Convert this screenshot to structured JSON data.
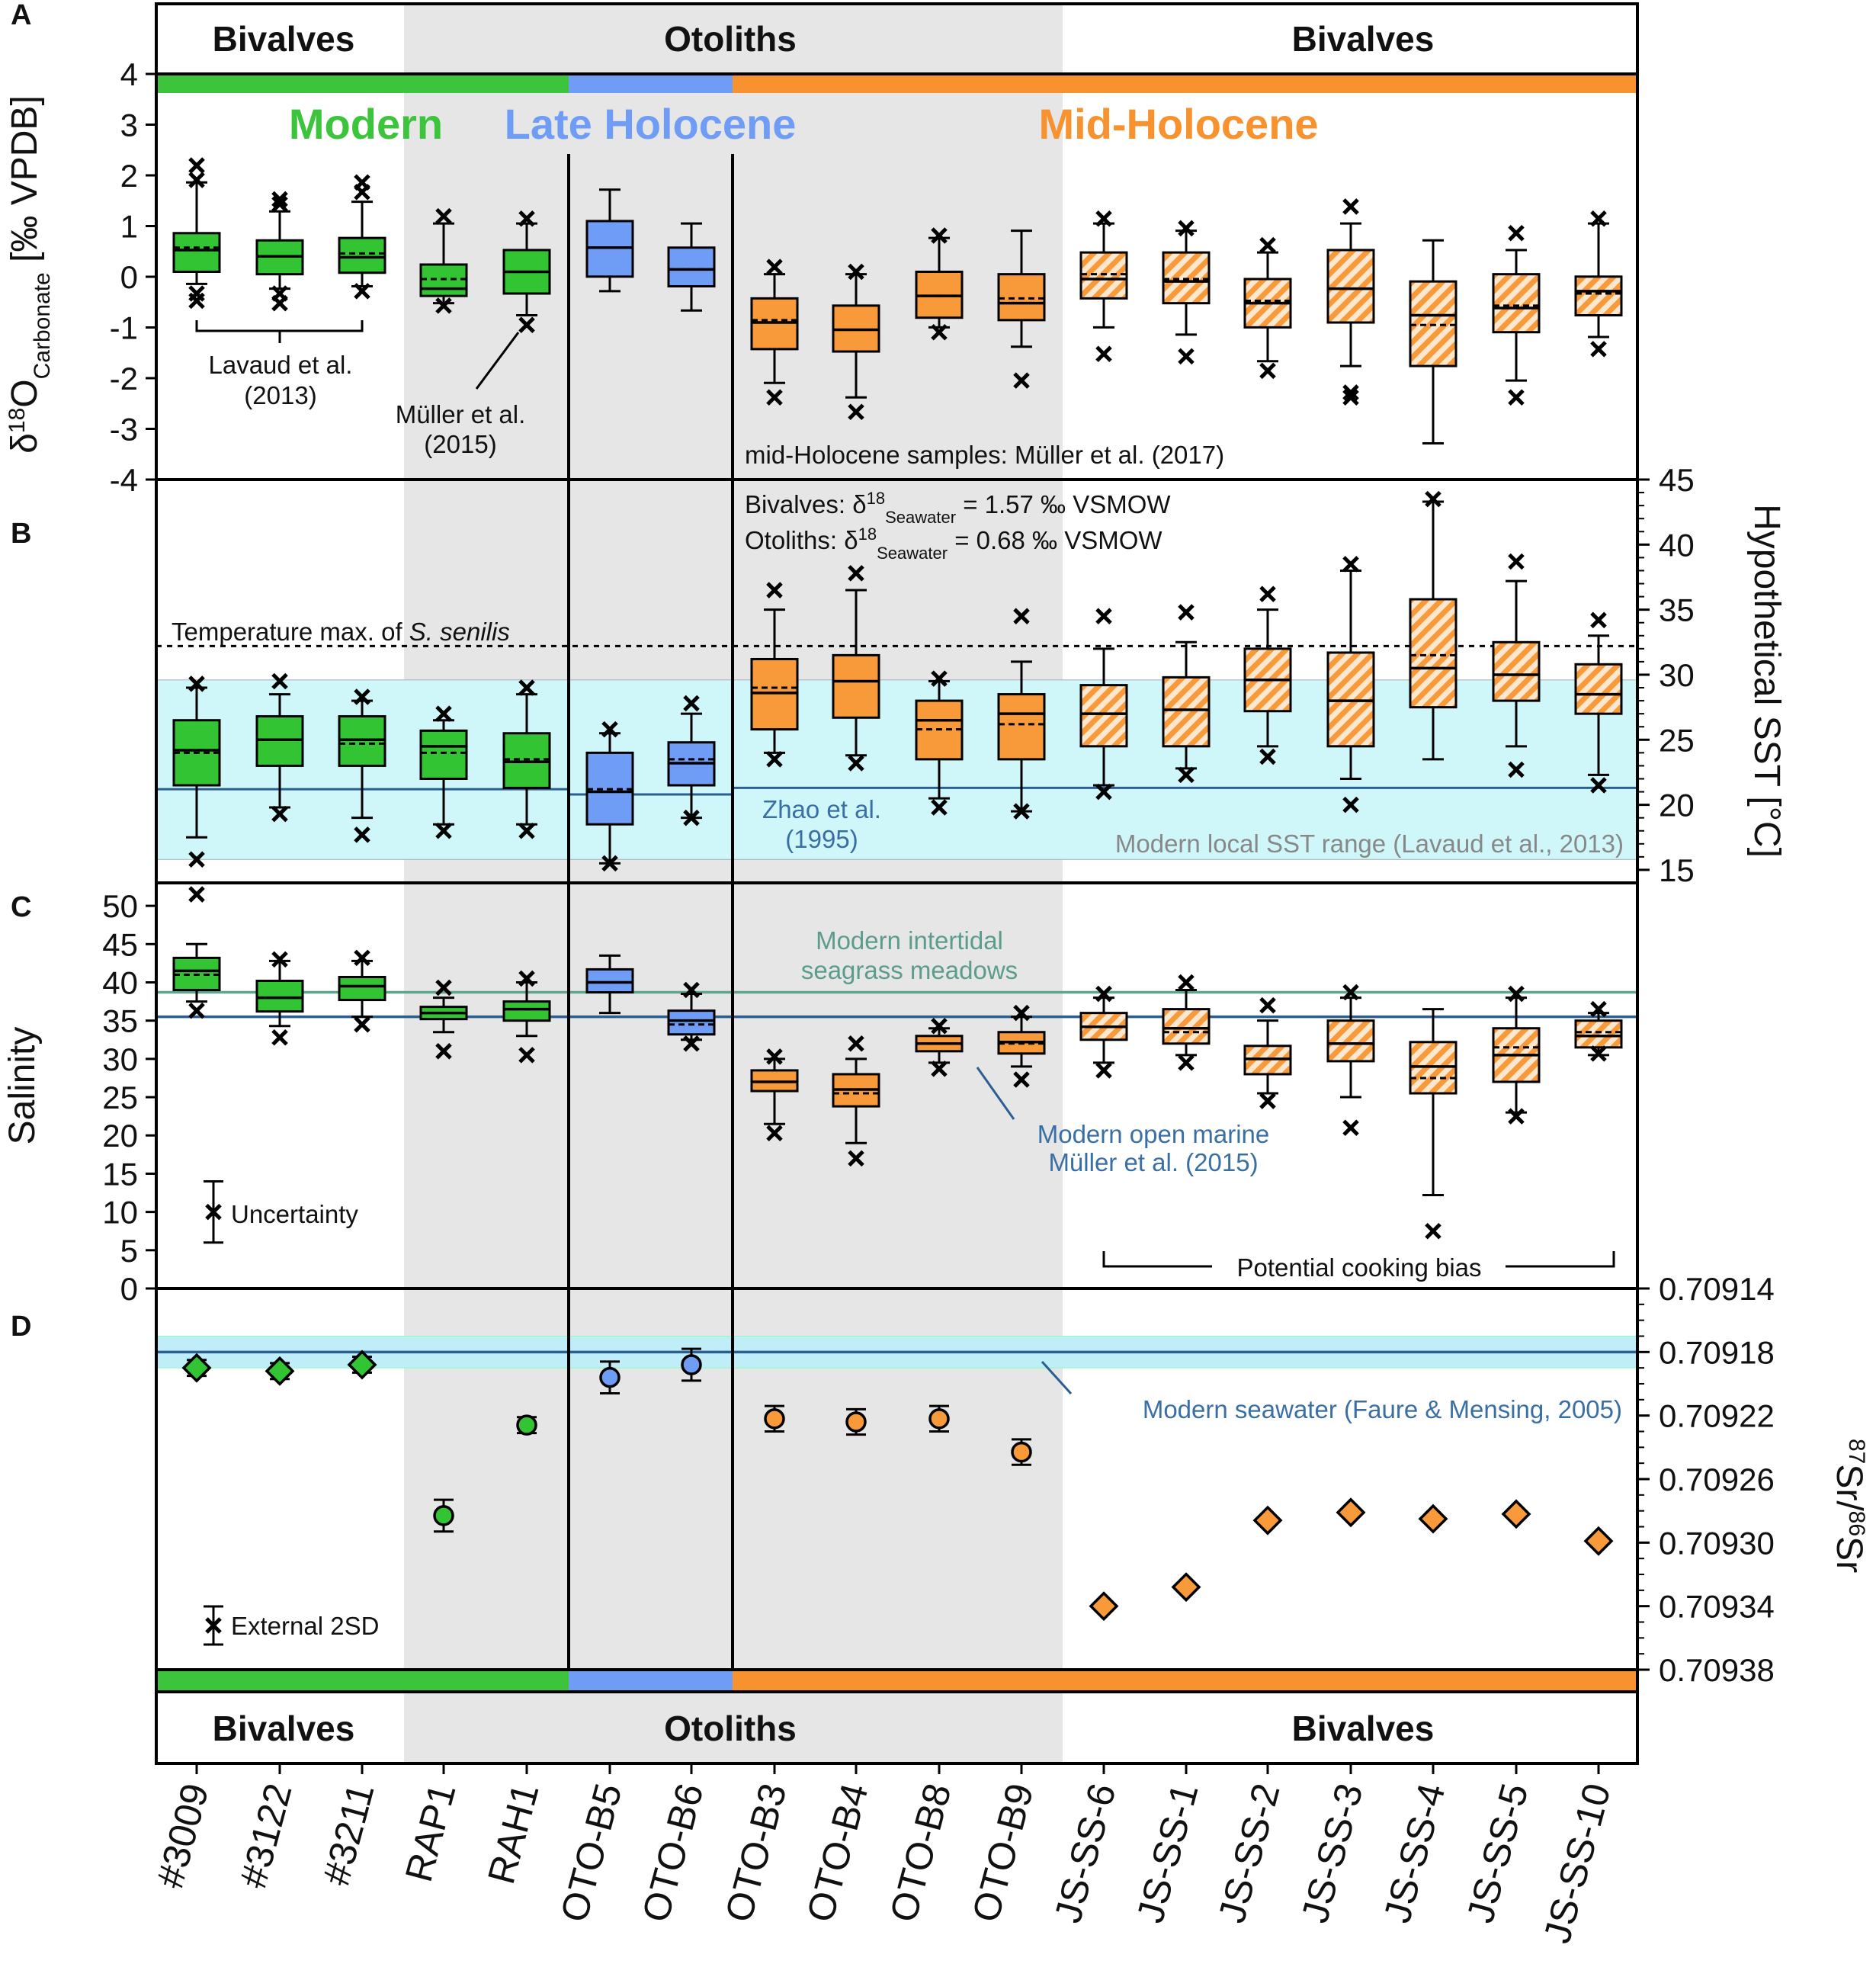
{
  "figure": {
    "panel_labels": [
      "A",
      "B",
      "C",
      "D"
    ],
    "top_groups": [
      {
        "label": "Bivalves",
        "from": 0,
        "to": 2
      },
      {
        "label": "Otoliths",
        "from": 3,
        "to": 10
      },
      {
        "label": "Bivalves",
        "from": 11,
        "to": 17
      }
    ],
    "periods": [
      {
        "label": "Modern",
        "color": "#3cc43c",
        "from": 0,
        "to": 4
      },
      {
        "label": "Late Holocene",
        "color": "#6f9cf4",
        "from": 5,
        "to": 6
      },
      {
        "label": "Mid-Holocene",
        "color": "#f7922e",
        "from": 7,
        "to": 17
      }
    ],
    "colors": {
      "modern": "#33c433",
      "late": "#6f9cf4",
      "mid": "#f99a3a",
      "gray_band": "#e6e6e6",
      "cyan_band": "#cff7fa",
      "blue_line": "#2b5f91",
      "green_line": "#5fa58f",
      "ann_blue": "#3a6fa6",
      "ann_teal": "#5c9c8c",
      "ann_gray": "#888888"
    },
    "samples": [
      "#3009",
      "#3122",
      "#3211",
      "RAP1",
      "RAH1",
      "OTO-B5",
      "OTO-B6",
      "OTO-B3",
      "OTO-B4",
      "OTO-B8",
      "OTO-B9",
      "JS-SS-6",
      "JS-SS-1",
      "JS-SS-2",
      "JS-SS-3",
      "JS-SS-4",
      "JS-SS-5",
      "JS-SS-10"
    ],
    "annotations_A": {
      "lavaud_1": "Lavaud et al.",
      "lavaud_2": "(2013)",
      "muller_1": "Müller et al.",
      "muller_2": "(2015)",
      "midholo": "mid-Holocene samples: Müller et al. (2017)"
    },
    "annotations_B": {
      "bivalves_prefix": "Bivalves: δ",
      "bivalves_suffix": " = 1.57 ‰ VSMOW",
      "otoliths_prefix": "Otoliths:  δ",
      "otoliths_suffix": " = 0.68 ‰ VSMOW",
      "sup": "18",
      "sub": "Seawater",
      "tempmax_prefix": "Temperature max. of ",
      "tempmax_species": "S. senilis",
      "zhao_1": "Zhao et al.",
      "zhao_2": "(1995)",
      "sst_range": "Modern local SST range (Lavaud et al., 2013)"
    },
    "annotations_C": {
      "seagrass_1": "Modern intertidal",
      "seagrass_2": "seagrass meadows",
      "openmarine_1": "Modern open marine",
      "openmarine_2": "Müller et al. (2015)",
      "uncertainty": "Uncertainty",
      "cooking": "Potential cooking bias"
    },
    "annotations_D": {
      "seawater": "Modern seawater (Faure & Mensing, 2005)",
      "ext2sd": "External 2SD"
    },
    "axis_labels": {
      "a_delta": "δ",
      "a_sup": "18",
      "a_o": "O",
      "a_sub": "Carbonate",
      "a_unit": " [‰ VPDB]",
      "b": "Hypothetical SST [°C]",
      "c": "Salinity",
      "d_sup1": "87",
      "d_sr1": "Sr/",
      "d_sup2": "86",
      "d_sr2": "Sr"
    }
  },
  "chart_data": [
    {
      "panel": "A",
      "type": "box",
      "ylabel": "δ18O Carbonate [‰ VPDB]",
      "ylim": [
        -4,
        4
      ],
      "yticks": [
        4,
        3,
        2,
        1,
        0,
        -1,
        -2,
        -3,
        -4
      ],
      "ytick_labels": [
        "4",
        "3",
        "2",
        "1",
        "0",
        "-1",
        "-2",
        "-3",
        "-4"
      ],
      "boxes": [
        {
          "q1": 0.3,
          "med": 0.75,
          "q3": 1.1,
          "mean": 0.8,
          "wlo": 0.05,
          "whi": 2.15,
          "out": [
            -0.15,
            -0.3,
            2.2,
            2.5
          ]
        },
        {
          "q1": 0.25,
          "med": 0.62,
          "q3": 0.95,
          "mean": 0.62,
          "wlo": -0.05,
          "whi": 1.55,
          "out": [
            -0.15,
            -0.35,
            1.7,
            1.8
          ]
        },
        {
          "q1": 0.28,
          "med": 0.6,
          "q3": 1.0,
          "mean": 0.68,
          "wlo": 0.0,
          "whi": 1.75,
          "out": [
            -0.1,
            1.95,
            2.15
          ]
        },
        {
          "q1": -0.2,
          "med": -0.05,
          "q3": 0.45,
          "mean": 0.15,
          "wlo": -0.35,
          "whi": 1.3,
          "out": [
            -0.4,
            1.45
          ]
        },
        {
          "q1": -0.15,
          "med": 0.3,
          "q3": 0.75,
          "mean": 0.3,
          "wlo": -0.6,
          "whi": 1.3,
          "out": [
            -0.8,
            1.4
          ]
        },
        {
          "q1": 0.2,
          "med": 0.8,
          "q3": 1.35,
          "mean": 0.8,
          "wlo": -0.1,
          "whi": 2.0,
          "out": []
        },
        {
          "q1": 0.0,
          "med": 0.35,
          "q3": 0.8,
          "mean": 0.35,
          "wlo": -0.5,
          "whi": 1.3,
          "out": []
        },
        {
          "q1": -1.3,
          "med": -0.75,
          "q3": -0.25,
          "mean": -0.7,
          "wlo": -2.0,
          "whi": 0.25,
          "out": [
            -2.3,
            0.4
          ]
        },
        {
          "q1": -1.35,
          "med": -0.9,
          "q3": -0.4,
          "mean": -0.9,
          "wlo": -2.3,
          "whi": 0.25,
          "out": [
            -2.6,
            0.3
          ]
        },
        {
          "q1": -0.65,
          "med": -0.2,
          "q3": 0.3,
          "mean": -0.2,
          "wlo": -0.85,
          "whi": 1.0,
          "out": [
            -0.95,
            1.05
          ]
        },
        {
          "q1": -0.7,
          "med": -0.35,
          "q3": 0.25,
          "mean": -0.25,
          "wlo": -1.25,
          "whi": 1.15,
          "out": [
            -1.95
          ]
        },
        {
          "q1": -0.25,
          "med": 0.15,
          "q3": 0.7,
          "mean": 0.25,
          "wlo": -0.85,
          "whi": 1.3,
          "out": [
            -1.4,
            1.4
          ]
        },
        {
          "q1": -0.35,
          "med": 0.1,
          "q3": 0.7,
          "mean": 0.15,
          "wlo": -1.0,
          "whi": 1.15,
          "out": [
            -1.45,
            1.2
          ]
        },
        {
          "q1": -0.85,
          "med": -0.35,
          "q3": 0.15,
          "mean": -0.3,
          "wlo": -1.55,
          "whi": 0.7,
          "out": [
            -1.75,
            0.85
          ]
        },
        {
          "q1": -0.75,
          "med": -0.05,
          "q3": 0.75,
          "mean": -0.05,
          "wlo": -1.65,
          "whi": 1.3,
          "out": [
            -2.2,
            -2.3,
            1.65
          ]
        },
        {
          "q1": -1.65,
          "med": -0.6,
          "q3": 0.1,
          "mean": -0.8,
          "wlo": -3.25,
          "whi": 0.95,
          "out": []
        },
        {
          "q1": -0.95,
          "med": -0.45,
          "q3": 0.25,
          "mean": -0.4,
          "wlo": -1.95,
          "whi": 0.75,
          "out": [
            -2.3,
            1.1
          ]
        },
        {
          "q1": -0.6,
          "med": -0.1,
          "q3": 0.2,
          "mean": -0.15,
          "wlo": -1.05,
          "whi": 1.3,
          "out": [
            -1.3,
            1.4
          ]
        }
      ]
    },
    {
      "panel": "B",
      "type": "box",
      "ylabel": "Hypothetical SST [°C]",
      "ylim": [
        14,
        45
      ],
      "yticks": [
        45,
        40,
        35,
        30,
        25,
        20,
        15
      ],
      "ytick_labels": [
        "45",
        "40",
        "35",
        "30",
        "25",
        "20",
        "15"
      ],
      "ref": {
        "temp_max": 32.2,
        "zhao_modern": 21.2,
        "zhao_late": 20.8,
        "zhao_mid": 21.3,
        "sst_range": [
          15.8,
          29.6
        ]
      },
      "boxes": [
        {
          "q1": 21.5,
          "med": 24.2,
          "q3": 26.5,
          "mean": 24.0,
          "wlo": 17.5,
          "whi": 29.0,
          "out": [
            15.8,
            29.3
          ]
        },
        {
          "q1": 23.0,
          "med": 25.0,
          "q3": 26.8,
          "mean": 25.0,
          "wlo": 19.8,
          "whi": 28.5,
          "out": [
            19.3,
            29.5
          ]
        },
        {
          "q1": 23.0,
          "med": 25.0,
          "q3": 26.8,
          "mean": 24.7,
          "wlo": 19.0,
          "whi": 28.0,
          "out": [
            17.7,
            28.3
          ]
        },
        {
          "q1": 22.0,
          "med": 24.5,
          "q3": 25.7,
          "mean": 24.0,
          "wlo": 18.5,
          "whi": 26.5,
          "out": [
            18.0,
            27.0
          ]
        },
        {
          "q1": 21.3,
          "med": 23.3,
          "q3": 25.5,
          "mean": 23.5,
          "wlo": 18.5,
          "whi": 28.5,
          "out": [
            18.0,
            29.0
          ]
        },
        {
          "q1": 18.5,
          "med": 21.0,
          "q3": 24.0,
          "mean": 21.2,
          "wlo": 15.5,
          "whi": 25.5,
          "out": [
            15.5,
            25.8
          ]
        },
        {
          "q1": 21.5,
          "med": 23.2,
          "q3": 24.8,
          "mean": 23.5,
          "wlo": 19.0,
          "whi": 27.0,
          "out": [
            19.0,
            27.8
          ]
        },
        {
          "q1": 25.8,
          "med": 28.6,
          "q3": 31.2,
          "mean": 29.0,
          "wlo": 24.0,
          "whi": 35.0,
          "out": [
            23.5,
            36.5
          ]
        },
        {
          "q1": 26.7,
          "med": 29.5,
          "q3": 31.5,
          "mean": 29.5,
          "wlo": 23.8,
          "whi": 36.5,
          "out": [
            23.2,
            37.8
          ]
        },
        {
          "q1": 23.5,
          "med": 26.5,
          "q3": 28.0,
          "mean": 25.8,
          "wlo": 20.5,
          "whi": 29.5,
          "out": [
            19.8,
            29.7
          ]
        },
        {
          "q1": 23.5,
          "med": 27.0,
          "q3": 28.5,
          "mean": 26.2,
          "wlo": 19.5,
          "whi": 31.0,
          "out": [
            19.5,
            34.5
          ]
        },
        {
          "q1": 24.5,
          "med": 27.0,
          "q3": 29.2,
          "mean": 27.0,
          "wlo": 21.5,
          "whi": 32.0,
          "out": [
            21.0,
            34.5
          ]
        },
        {
          "q1": 24.5,
          "med": 27.3,
          "q3": 29.8,
          "mean": 27.3,
          "wlo": 22.8,
          "whi": 32.5,
          "out": [
            22.3,
            34.8
          ]
        },
        {
          "q1": 27.2,
          "med": 29.6,
          "q3": 32.0,
          "mean": 29.6,
          "wlo": 24.5,
          "whi": 35.0,
          "out": [
            23.7,
            36.2
          ]
        },
        {
          "q1": 24.5,
          "med": 28.0,
          "q3": 31.7,
          "mean": 28.0,
          "wlo": 22.0,
          "whi": 38.0,
          "out": [
            20.0,
            38.5
          ]
        },
        {
          "q1": 27.5,
          "med": 30.5,
          "q3": 35.8,
          "mean": 31.5,
          "wlo": 23.5,
          "whi": 43.3,
          "out": [
            43.5
          ]
        },
        {
          "q1": 28.0,
          "med": 30.0,
          "q3": 32.5,
          "mean": 30.0,
          "wlo": 24.5,
          "whi": 37.2,
          "out": [
            22.7,
            38.7
          ]
        },
        {
          "q1": 27.0,
          "med": 28.5,
          "q3": 30.8,
          "mean": 28.5,
          "wlo": 22.3,
          "whi": 33.0,
          "out": [
            21.5,
            34.2
          ]
        }
      ]
    },
    {
      "panel": "C",
      "type": "box",
      "ylabel": "Salinity",
      "ylim": [
        0,
        53
      ],
      "yticks": [
        0,
        5,
        10,
        15,
        20,
        25,
        30,
        35,
        40,
        45,
        50
      ],
      "ytick_labels": [
        "0",
        "5",
        "10",
        "15",
        "20",
        "25",
        "30",
        "35",
        "40",
        "45",
        "50"
      ],
      "ref": {
        "seagrass": 38.7,
        "open_marine": 35.5
      },
      "uncertainty": {
        "center": 10,
        "lo": 6,
        "hi": 14
      },
      "boxes": [
        {
          "q1": 39.0,
          "med": 41.5,
          "q3": 43.2,
          "mean": 41.0,
          "wlo": 37.5,
          "whi": 45.0,
          "out": [
            36.3,
            51.5
          ]
        },
        {
          "q1": 36.2,
          "med": 38.0,
          "q3": 40.2,
          "mean": 38.0,
          "wlo": 34.3,
          "whi": 42.8,
          "out": [
            32.8,
            43.0
          ]
        },
        {
          "q1": 37.7,
          "med": 39.5,
          "q3": 40.7,
          "mean": 39.5,
          "wlo": 35.5,
          "whi": 42.8,
          "out": [
            34.5,
            43.2
          ]
        },
        {
          "q1": 35.2,
          "med": 36.0,
          "q3": 36.8,
          "mean": 36.0,
          "wlo": 33.5,
          "whi": 38.0,
          "out": [
            31.0,
            39.3
          ]
        },
        {
          "q1": 35.0,
          "med": 36.5,
          "q3": 37.5,
          "mean": 36.5,
          "wlo": 33.0,
          "whi": 40.0,
          "out": [
            30.5,
            40.5
          ]
        },
        {
          "q1": 38.7,
          "med": 40.0,
          "q3": 41.7,
          "mean": 40.0,
          "wlo": 36.0,
          "whi": 43.5,
          "out": []
        },
        {
          "q1": 33.2,
          "med": 35.0,
          "q3": 36.3,
          "mean": 34.5,
          "wlo": 32.5,
          "whi": 38.5,
          "out": [
            32.0,
            39.0
          ]
        },
        {
          "q1": 25.8,
          "med": 27.0,
          "q3": 28.5,
          "mean": 27.0,
          "wlo": 21.5,
          "whi": 30.0,
          "out": [
            20.3,
            30.3
          ]
        },
        {
          "q1": 23.8,
          "med": 26.0,
          "q3": 28.0,
          "mean": 25.5,
          "wlo": 19.0,
          "whi": 30.0,
          "out": [
            17.0,
            32.0
          ]
        },
        {
          "q1": 31.0,
          "med": 32.0,
          "q3": 33.0,
          "mean": 32.0,
          "wlo": 29.5,
          "whi": 34.0,
          "out": [
            28.7,
            34.3
          ]
        },
        {
          "q1": 30.7,
          "med": 32.2,
          "q3": 33.5,
          "mean": 32.0,
          "wlo": 29.0,
          "whi": 35.5,
          "out": [
            27.3,
            36.0
          ]
        },
        {
          "q1": 32.5,
          "med": 34.2,
          "q3": 36.0,
          "mean": 34.2,
          "wlo": 29.5,
          "whi": 38.0,
          "out": [
            28.5,
            38.5
          ]
        },
        {
          "q1": 32.0,
          "med": 34.0,
          "q3": 36.5,
          "mean": 33.5,
          "wlo": 30.5,
          "whi": 39.0,
          "out": [
            29.5,
            40.0
          ]
        },
        {
          "q1": 28.0,
          "med": 30.0,
          "q3": 31.7,
          "mean": 30.0,
          "wlo": 25.5,
          "whi": 35.0,
          "out": [
            24.5,
            37.0
          ]
        },
        {
          "q1": 29.7,
          "med": 32.0,
          "q3": 35.0,
          "mean": 32.0,
          "wlo": 25.0,
          "whi": 38.0,
          "out": [
            21.0,
            38.7
          ]
        },
        {
          "q1": 25.5,
          "med": 29.0,
          "q3": 32.2,
          "mean": 27.5,
          "wlo": 12.2,
          "whi": 36.5,
          "out": [
            7.5
          ]
        },
        {
          "q1": 27.0,
          "med": 30.5,
          "q3": 34.0,
          "mean": 31.5,
          "wlo": 23.0,
          "whi": 38.0,
          "out": [
            22.5,
            38.5
          ]
        },
        {
          "q1": 31.5,
          "med": 33.0,
          "q3": 35.0,
          "mean": 33.5,
          "wlo": 30.5,
          "whi": 36.0,
          "out": [
            30.7,
            36.5
          ]
        }
      ]
    },
    {
      "panel": "D",
      "type": "scatter",
      "ylabel": "87Sr/86Sr",
      "ylim": [
        0.70914,
        0.70938
      ],
      "y_inverted": true,
      "yticks": [
        0.70914,
        0.70918,
        0.70922,
        0.70926,
        0.7093,
        0.70934,
        0.70938
      ],
      "ytick_labels": [
        "0.70914",
        "0.70918",
        "0.70922",
        "0.70926",
        "0.70930",
        "0.70934",
        "0.70938"
      ],
      "seawater": {
        "value": 0.70918,
        "band": [
          0.70917,
          0.70919
        ]
      },
      "ext_2sd": 1.2e-05,
      "points": [
        {
          "y": 0.70919,
          "marker": "diamond",
          "err": 5e-06
        },
        {
          "y": 0.709192,
          "marker": "diamond",
          "err": 5e-06
        },
        {
          "y": 0.709188,
          "marker": "diamond",
          "err": 5e-06
        },
        {
          "y": 0.709283,
          "marker": "circle",
          "err": 1e-05
        },
        {
          "y": 0.709226,
          "marker": "circle",
          "err": 5e-06
        },
        {
          "y": 0.709196,
          "marker": "circle",
          "err": 1e-05
        },
        {
          "y": 0.709188,
          "marker": "circle",
          "err": 1e-05
        },
        {
          "y": 0.709222,
          "marker": "circle",
          "err": 8e-06
        },
        {
          "y": 0.709224,
          "marker": "circle",
          "err": 8e-06
        },
        {
          "y": 0.709222,
          "marker": "circle",
          "err": 8e-06
        },
        {
          "y": 0.709243,
          "marker": "circle",
          "err": 8e-06
        },
        {
          "y": 0.70934,
          "marker": "diamond",
          "err": 0.0
        },
        {
          "y": 0.709328,
          "marker": "diamond",
          "err": 0.0
        },
        {
          "y": 0.709286,
          "marker": "diamond",
          "err": 0.0
        },
        {
          "y": 0.709281,
          "marker": "diamond",
          "err": 0.0
        },
        {
          "y": 0.709285,
          "marker": "diamond",
          "err": 0.0
        },
        {
          "y": 0.709282,
          "marker": "diamond",
          "err": 0.0
        },
        {
          "y": 0.709299,
          "marker": "diamond",
          "err": 0.0
        }
      ]
    }
  ]
}
